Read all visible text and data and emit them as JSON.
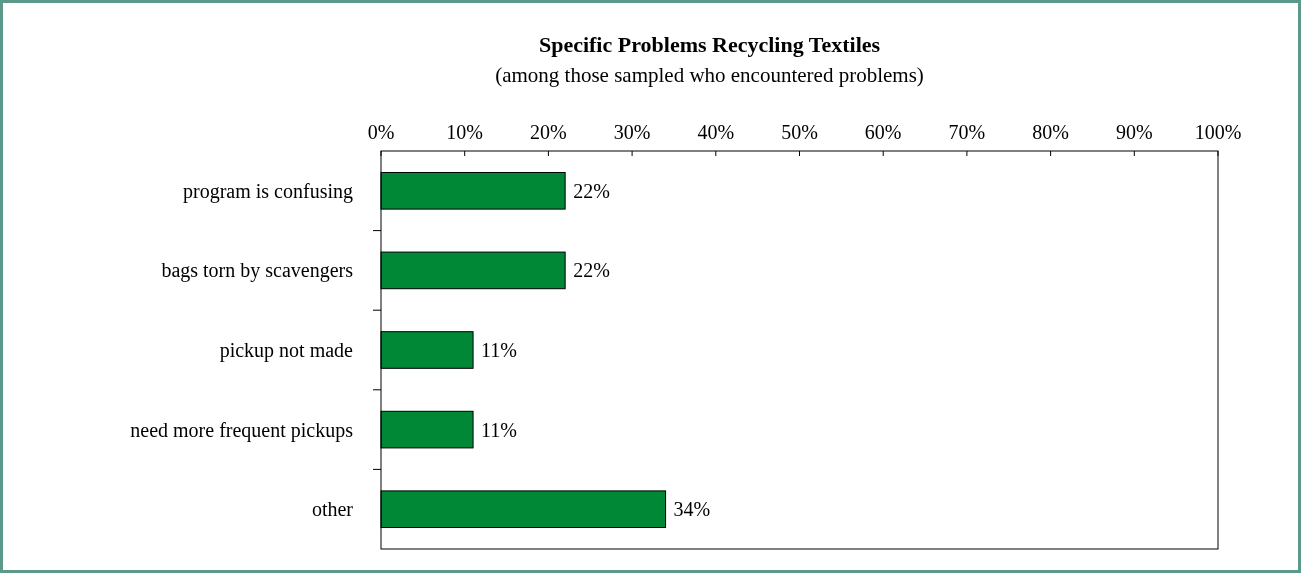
{
  "chart_data": {
    "type": "bar",
    "orientation": "horizontal",
    "title": "Specific Problems Recycling Textiles",
    "subtitle": "(among those sampled who encountered problems)",
    "categories": [
      "program is confusing",
      "bags torn by scavengers",
      "pickup not made",
      "need more frequent pickups",
      "other"
    ],
    "values": [
      22,
      22,
      11,
      11,
      34
    ],
    "value_labels": [
      "22%",
      "22%",
      "11%",
      "11%",
      "34%"
    ],
    "color": "#008837",
    "xlim": [
      0,
      100
    ],
    "xticks": [
      {
        "value": 0,
        "label": "0%"
      },
      {
        "value": 10,
        "label": "10%"
      },
      {
        "value": 20,
        "label": "20%"
      },
      {
        "value": 30,
        "label": "30%"
      },
      {
        "value": 40,
        "label": "40%"
      },
      {
        "value": 50,
        "label": "50%"
      },
      {
        "value": 60,
        "label": "60%"
      },
      {
        "value": 70,
        "label": "70%"
      },
      {
        "value": 80,
        "label": "80%"
      },
      {
        "value": 90,
        "label": "90%"
      },
      {
        "value": 100,
        "label": "100%"
      }
    ],
    "grid": false
  }
}
